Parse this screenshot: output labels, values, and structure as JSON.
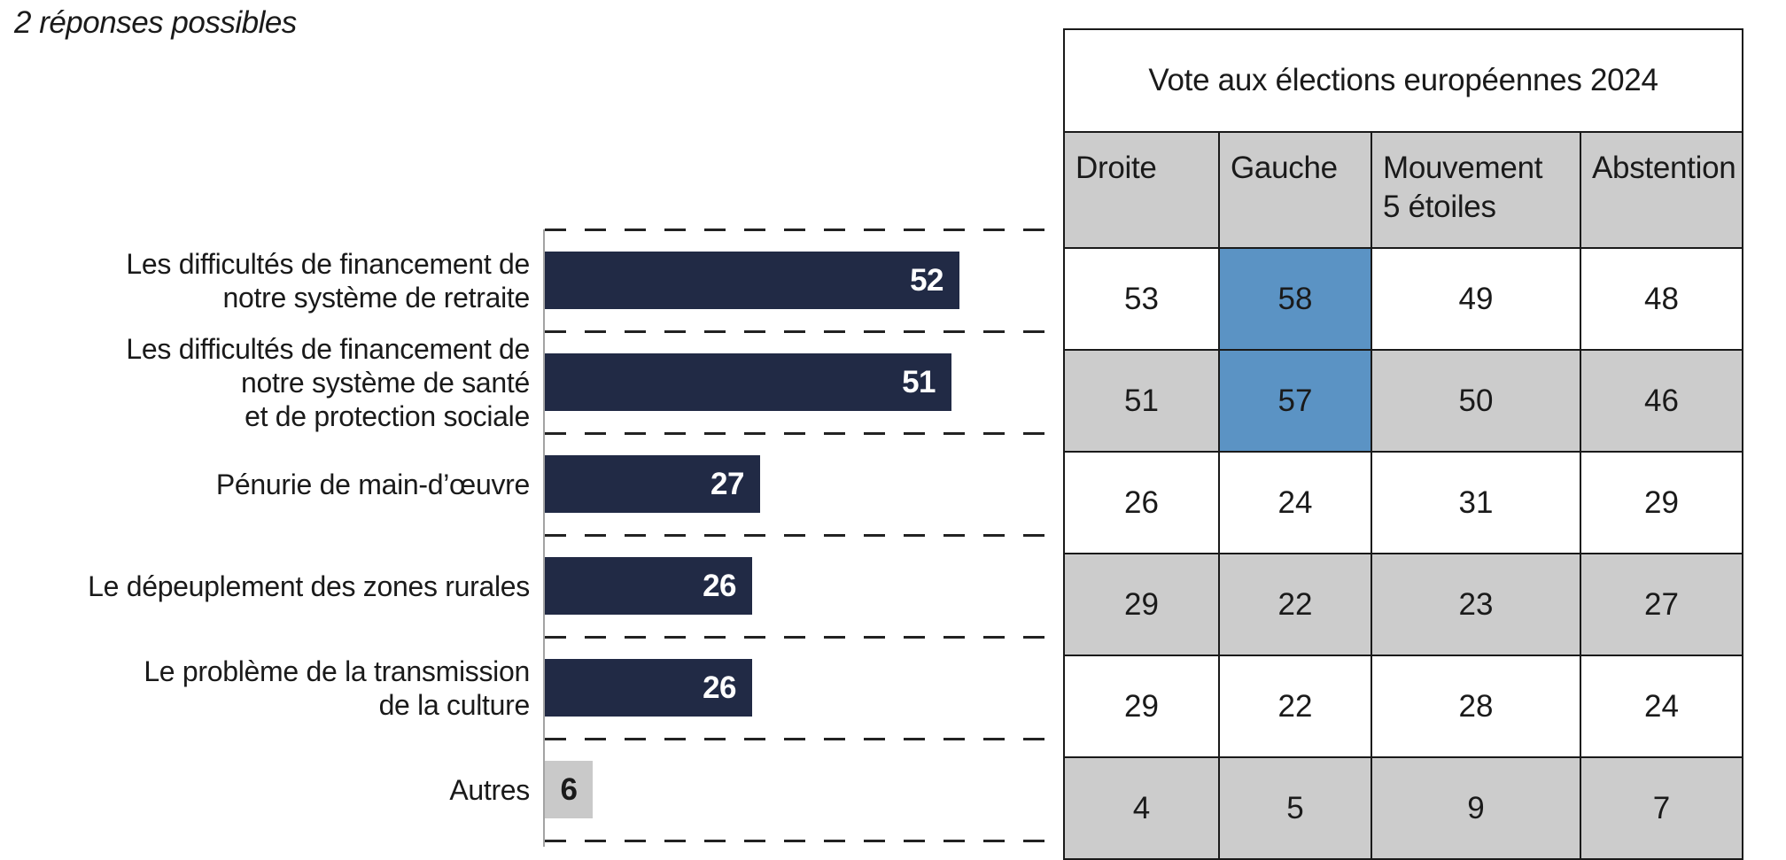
{
  "chart_data": [
    {
      "type": "bar",
      "orientation": "horizontal",
      "subtitle": "2 réponses possibles",
      "title": "",
      "xlabel": "",
      "ylabel": "",
      "xlim": [
        0,
        65
      ],
      "categories": [
        "Les difficultés de financement de\nnotre système de retraite",
        "Les difficultés de financement de\nnotre système de santé\net de protection sociale",
        "Pénurie de main-d’œuvre",
        "Le dépeuplement des zones rurales",
        "Le problème de la transmission\nde la culture",
        "Autres"
      ],
      "values": [
        52,
        51,
        27,
        26,
        26,
        6
      ],
      "bar_color": "#212A45",
      "muted_bar_color": "#C9C9C9",
      "muted_bars": [
        5
      ],
      "value_label_color": "#FFFFFF",
      "gridlines": "dashed horizontal separators between categories",
      "legend": "none"
    },
    {
      "type": "table",
      "title": "Vote aux élections européennes 2024",
      "columns": [
        "Droite",
        "Gauche",
        "Mouvement\n5 étoiles",
        "Abstention"
      ],
      "rows": [
        [
          53,
          58,
          49,
          48
        ],
        [
          51,
          57,
          50,
          46
        ],
        [
          26,
          24,
          31,
          29
        ],
        [
          29,
          22,
          23,
          27
        ],
        [
          29,
          22,
          28,
          24
        ],
        [
          4,
          5,
          9,
          7
        ]
      ],
      "header_bg": "#CCCCCC",
      "row_stripe_colors": [
        "#FFFFFF",
        "#CCCCCC"
      ],
      "highlight_color": "#5B93C4",
      "highlighted_cells": [
        [
          0,
          1
        ],
        [
          1,
          1
        ]
      ]
    }
  ]
}
